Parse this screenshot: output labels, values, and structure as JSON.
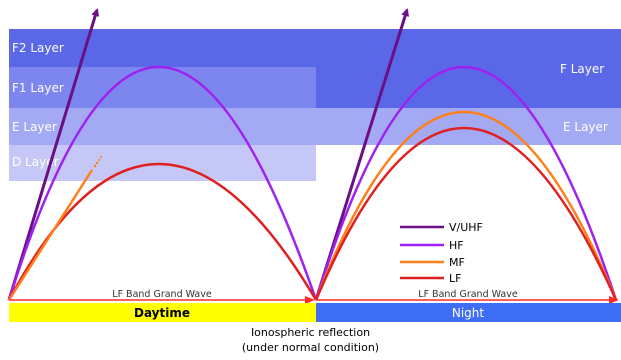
{
  "layers": {
    "day": {
      "f2": "F2 Layer",
      "f1": "F1 Layer",
      "e": "E Layer",
      "d": "D Layer"
    },
    "night": {
      "f": "F Layer",
      "e": "E Layer"
    }
  },
  "legend": [
    {
      "label": "V/UHF",
      "color": "#6a0f86"
    },
    {
      "label": "HF",
      "color": "#a020f0"
    },
    {
      "label": "MF",
      "color": "#ff7f1a"
    },
    {
      "label": "LF",
      "color": "#e02020"
    }
  ],
  "ground_wave": {
    "day_label": "LF Band Grand Wave",
    "night_label": "LF Band Grand Wave"
  },
  "bands": {
    "day": "Daytime",
    "night": "Night"
  },
  "caption": {
    "line1": "Ionospheric reflection",
    "line2": "(under normal condition)"
  },
  "colors": {
    "f2_layer": "#5a67e6",
    "f1_layer": "#7d86ee",
    "e_layer": "#a3a9f2",
    "d_layer": "#c5c8f6",
    "day_band": "#ffff00",
    "night_band": "#3d6ef5",
    "ground_arrow": "#ff2a2a"
  }
}
